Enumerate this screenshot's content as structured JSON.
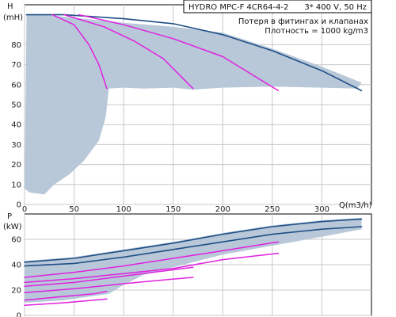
{
  "header": {
    "model": "HYDRO MPC-F 4CR64-4-2",
    "supply": "3* 400 V, 50 Hz",
    "note1": "Потеря в фитингах и клапанах",
    "note2": "Плотность = 1000 kg/m3"
  },
  "colors": {
    "envelope_fill": "#b8c8d8",
    "max_curve": "#1f4f86",
    "reduced_curves": "#e020e0",
    "grid": "#c8c8c8",
    "axis": "#000000"
  },
  "chart_data": [
    {
      "type": "line",
      "panel": "head",
      "ylabel_top": "H",
      "ylabel_unit": "(mH)",
      "xlabel": "Q(m3/h)",
      "xlim": [
        0,
        350
      ],
      "ylim": [
        0,
        100
      ],
      "xticks": [
        0,
        50,
        100,
        150,
        200,
        250,
        300
      ],
      "yticks": [
        0,
        10,
        20,
        30,
        40,
        50,
        60,
        70,
        80
      ],
      "grid": true,
      "envelope": [
        [
          2,
          95
        ],
        [
          20,
          95
        ],
        [
          60,
          93
        ],
        [
          100,
          91
        ],
        [
          150,
          89
        ],
        [
          200,
          86
        ],
        [
          250,
          78
        ],
        [
          300,
          69
        ],
        [
          340,
          61
        ],
        [
          336,
          58
        ],
        [
          300,
          58.5
        ],
        [
          250,
          59
        ],
        [
          200,
          58.5
        ],
        [
          170,
          57.5
        ],
        [
          150,
          58.5
        ],
        [
          120,
          58
        ],
        [
          100,
          58.5
        ],
        [
          85,
          58
        ],
        [
          82,
          44
        ],
        [
          75,
          32
        ],
        [
          60,
          22
        ],
        [
          45,
          15
        ],
        [
          30,
          10
        ],
        [
          20,
          5
        ],
        [
          5,
          6
        ],
        [
          0,
          8
        ]
      ],
      "series": [
        {
          "points": [
            [
              2,
              95
            ],
            [
              40,
              95
            ],
            [
              100,
              93
            ],
            [
              150,
              90.5
            ],
            [
              200,
              85
            ],
            [
              250,
              77
            ],
            [
              300,
              67
            ],
            [
              340,
              57
            ]
          ]
        },
        {
          "points": [
            [
              28,
              95
            ],
            [
              50,
              90
            ],
            [
              65,
              80
            ],
            [
              75,
              70
            ],
            [
              83,
              58
            ]
          ]
        },
        {
          "points": [
            [
              40,
              95
            ],
            [
              80,
              89
            ],
            [
              110,
              82
            ],
            [
              140,
              73
            ],
            [
              170,
              58
            ]
          ]
        },
        {
          "points": [
            [
              55,
              95
            ],
            [
              100,
              90
            ],
            [
              150,
              83
            ],
            [
              200,
              74
            ],
            [
              256,
              57
            ]
          ]
        }
      ]
    },
    {
      "type": "line",
      "panel": "power",
      "ylabel_top": "P",
      "ylabel_unit": "(kW)",
      "xlim": [
        0,
        350
      ],
      "ylim": [
        0,
        80
      ],
      "yticks": [
        0,
        20,
        40,
        60
      ],
      "grid": true,
      "envelope": [
        [
          0,
          43
        ],
        [
          50,
          46
        ],
        [
          100,
          52
        ],
        [
          150,
          58
        ],
        [
          200,
          65
        ],
        [
          250,
          71
        ],
        [
          300,
          75
        ],
        [
          340,
          77
        ],
        [
          340,
          68
        ],
        [
          300,
          62
        ],
        [
          250,
          55
        ],
        [
          200,
          48
        ],
        [
          160,
          40
        ],
        [
          120,
          32
        ],
        [
          100,
          24
        ],
        [
          85,
          17
        ],
        [
          40,
          12
        ],
        [
          0,
          10
        ]
      ],
      "series": [
        {
          "points": [
            [
              0,
              42
            ],
            [
              50,
              45
            ],
            [
              100,
              51
            ],
            [
              150,
              57
            ],
            [
              200,
              64
            ],
            [
              250,
              70
            ],
            [
              300,
              74
            ],
            [
              340,
              76
            ]
          ]
        },
        {
          "points": [
            [
              0,
              39
            ],
            [
              50,
              41
            ],
            [
              100,
              46
            ],
            [
              150,
              52
            ],
            [
              200,
              58
            ],
            [
              250,
              64
            ],
            [
              300,
              68
            ],
            [
              340,
              70
            ]
          ]
        },
        {
          "points": [
            [
              0,
              30
            ],
            [
              50,
              34
            ],
            [
              100,
              39
            ],
            [
              150,
              45
            ],
            [
              200,
              51
            ],
            [
              256,
              58
            ]
          ]
        },
        {
          "points": [
            [
              0,
              26
            ],
            [
              50,
              29
            ],
            [
              100,
              33
            ],
            [
              150,
              37
            ],
            [
              200,
              44
            ],
            [
              256,
              49
            ]
          ]
        },
        {
          "points": [
            [
              0,
              23
            ],
            [
              50,
              26
            ],
            [
              100,
              31
            ],
            [
              140,
              35
            ],
            [
              170,
              38
            ]
          ]
        },
        {
          "points": [
            [
              0,
              18
            ],
            [
              50,
              21
            ],
            [
              100,
              25
            ],
            [
              140,
              28
            ],
            [
              170,
              30
            ]
          ]
        },
        {
          "points": [
            [
              0,
              12
            ],
            [
              40,
              15
            ],
            [
              70,
              17
            ],
            [
              83,
              19
            ]
          ]
        },
        {
          "points": [
            [
              0,
              8
            ],
            [
              40,
              10
            ],
            [
              70,
              12
            ],
            [
              83,
              13
            ]
          ]
        }
      ]
    }
  ]
}
